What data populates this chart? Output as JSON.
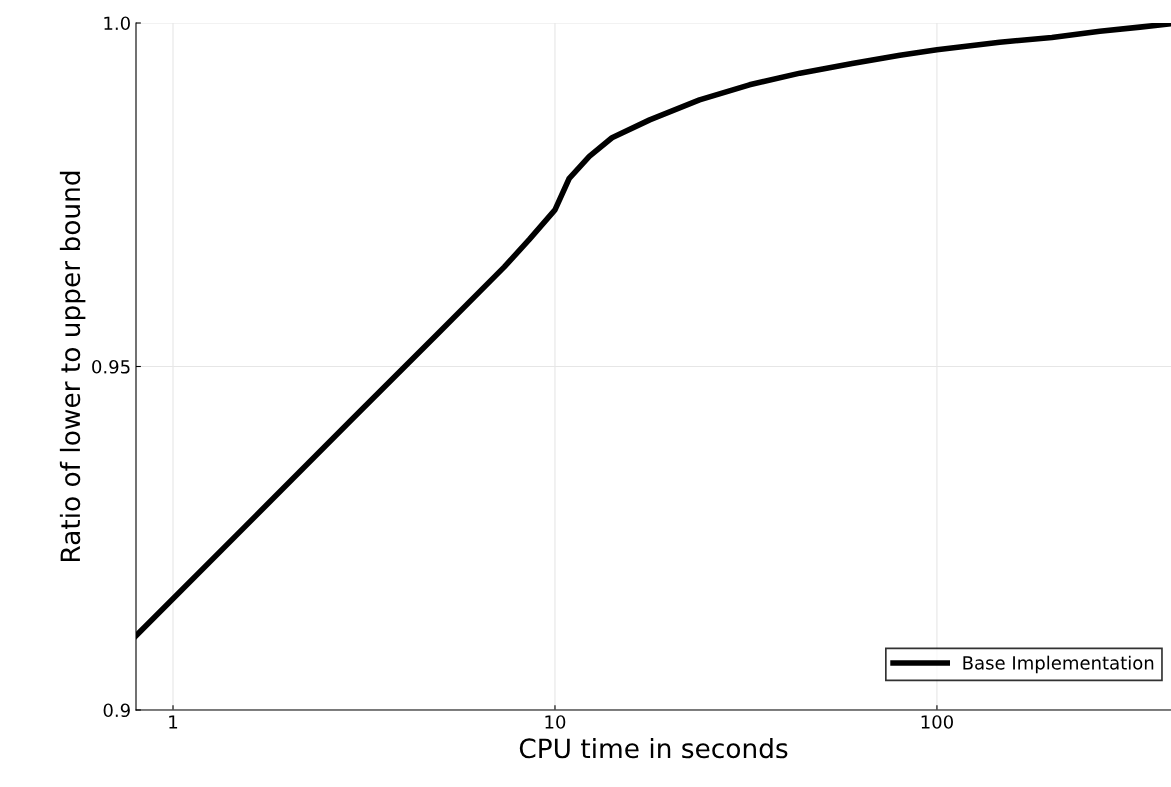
{
  "chart_data": {
    "type": "line",
    "xlabel": "CPU time in seconds",
    "ylabel": "Ratio of lower to upper bound",
    "log": "x",
    "grid": true,
    "legend": "bottom right",
    "marker": "none",
    "line_style": "solid",
    "xlim": [
      0.8,
      410
    ],
    "xticks": [
      1,
      10,
      100
    ],
    "ylim": [
      0.9,
      1.0
    ],
    "yticks": [
      0.9,
      0.95,
      {
        "value": 1.0,
        "label": "1.0"
      }
    ],
    "series": [
      {
        "name": "Base Implementation",
        "color": "#000000",
        "x": [
          0.8,
          1.5,
          3,
          5,
          7.37,
          8.57,
          10,
          10.9,
          12.3,
          14.1,
          17.7,
          23.9,
          32.3,
          43.8,
          60,
          80,
          100,
          146,
          200,
          267,
          340,
          410
        ],
        "values": [
          0.9108,
          0.926,
          0.9428,
          0.9551,
          0.9645,
          0.9685,
          0.9728,
          0.9774,
          0.9806,
          0.9833,
          0.9859,
          0.9888,
          0.991,
          0.9927,
          0.9941,
          0.9953,
          0.9961,
          0.9972,
          0.9979,
          0.9988,
          0.9994,
          0.9999
        ]
      }
    ]
  }
}
